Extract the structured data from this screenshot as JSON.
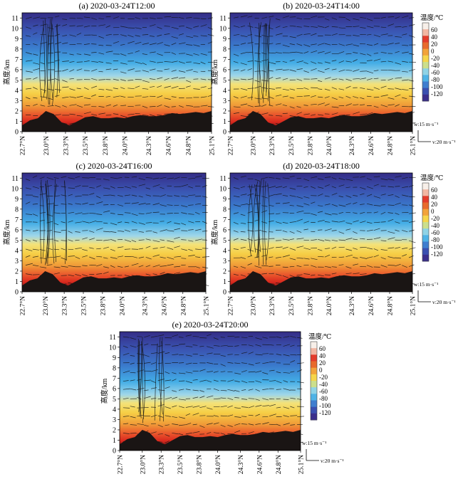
{
  "figure": {
    "ylabel": "高度/km",
    "yticks": [
      "0",
      "1",
      "2",
      "3",
      "4",
      "5",
      "6",
      "7",
      "8",
      "9",
      "10",
      "11"
    ],
    "xticks": [
      "22.7°N",
      "23.0°N",
      "23.3°N",
      "23.5°N",
      "23.8°N",
      "24.0°N",
      "24.3°N",
      "24.6°N",
      "24.8°N",
      "25.1°N"
    ],
    "colorbar": {
      "title": "温度/℃",
      "ticks": [
        "60",
        "40",
        "20",
        "0",
        "-20",
        "-40",
        "-60",
        "-80",
        "-100",
        "-120"
      ],
      "colors": [
        "#f7efe9",
        "#f2b6a2",
        "#e33b2b",
        "#e86a2c",
        "#f2a33a",
        "#f6d54a",
        "#ccdf8c",
        "#8fd3e6",
        "#4fb3e6",
        "#3f7ecf",
        "#3a4fb0",
        "#3a2e8c"
      ]
    },
    "vector_key": {
      "w": "w:15 m·s⁻¹",
      "v": "v:20 m·s⁻¹"
    }
  },
  "chart_data": [
    {
      "type": "heatmap",
      "title": "(a) 2020-03-24T12:00",
      "xlabel": "",
      "ylabel": "高度/km",
      "xlim": [
        22.7,
        25.1
      ],
      "ylim": [
        0,
        11.5
      ],
      "x": [
        22.7,
        22.8,
        22.9,
        23.0,
        23.1,
        23.2,
        23.3,
        23.4,
        23.5,
        23.6,
        23.7,
        23.8,
        23.9,
        24.0,
        24.1,
        24.2,
        24.3,
        24.4,
        24.5,
        24.6,
        24.7,
        24.8,
        24.9,
        25.0,
        25.1
      ],
      "terrain_km": [
        0.6,
        1.1,
        1.3,
        2.0,
        1.7,
        0.9,
        0.6,
        1.0,
        1.4,
        1.5,
        1.3,
        1.3,
        1.4,
        1.3,
        1.5,
        1.6,
        1.5,
        1.5,
        1.6,
        1.8,
        1.7,
        1.8,
        1.9,
        1.8,
        2.0
      ],
      "temperature_levels_c": {
        "surface": 20,
        "2km": 10,
        "4km": 0,
        "5km": -10,
        "7km": -40,
        "9km": -80,
        "11km": -110
      }
    },
    {
      "type": "heatmap",
      "title": "(b) 2020-03-24T14:00",
      "xlabel": "",
      "ylabel": "高度/km",
      "xlim": [
        22.7,
        25.1
      ],
      "ylim": [
        0,
        11.5
      ],
      "x": [
        22.7,
        22.8,
        22.9,
        23.0,
        23.1,
        23.2,
        23.3,
        23.4,
        23.5,
        23.6,
        23.7,
        23.8,
        23.9,
        24.0,
        24.1,
        24.2,
        24.3,
        24.4,
        24.5,
        24.6,
        24.7,
        24.8,
        24.9,
        25.0,
        25.1
      ],
      "terrain_km": [
        0.6,
        1.1,
        1.3,
        2.0,
        1.7,
        0.9,
        0.6,
        1.0,
        1.4,
        1.5,
        1.3,
        1.3,
        1.4,
        1.3,
        1.5,
        1.6,
        1.5,
        1.5,
        1.6,
        1.8,
        1.7,
        1.8,
        1.9,
        1.8,
        2.0
      ],
      "temperature_levels_c": {
        "surface": 20,
        "2km": 10,
        "4km": 0,
        "5km": -10,
        "7km": -40,
        "9km": -80,
        "11km": -110
      }
    },
    {
      "type": "heatmap",
      "title": "(c) 2020-03-24T16:00",
      "xlabel": "",
      "ylabel": "高度/km",
      "xlim": [
        22.7,
        25.1
      ],
      "ylim": [
        0,
        11.5
      ],
      "x": [
        22.7,
        22.8,
        22.9,
        23.0,
        23.1,
        23.2,
        23.3,
        23.4,
        23.5,
        23.6,
        23.7,
        23.8,
        23.9,
        24.0,
        24.1,
        24.2,
        24.3,
        24.4,
        24.5,
        24.6,
        24.7,
        24.8,
        24.9,
        25.0,
        25.1
      ],
      "terrain_km": [
        0.6,
        1.1,
        1.3,
        2.0,
        1.7,
        0.9,
        0.6,
        1.0,
        1.4,
        1.5,
        1.3,
        1.3,
        1.4,
        1.3,
        1.5,
        1.6,
        1.5,
        1.5,
        1.6,
        1.8,
        1.7,
        1.8,
        1.9,
        1.8,
        2.0
      ],
      "temperature_levels_c": {
        "surface": 20,
        "2km": 10,
        "4km": 0,
        "5km": -10,
        "7km": -40,
        "9km": -80,
        "11km": -110
      }
    },
    {
      "type": "heatmap",
      "title": "(d) 2020-03-24T18:00",
      "xlabel": "",
      "ylabel": "高度/km",
      "xlim": [
        22.7,
        25.1
      ],
      "ylim": [
        0,
        11.5
      ],
      "x": [
        22.7,
        22.8,
        22.9,
        23.0,
        23.1,
        23.2,
        23.3,
        23.4,
        23.5,
        23.6,
        23.7,
        23.8,
        23.9,
        24.0,
        24.1,
        24.2,
        24.3,
        24.4,
        24.5,
        24.6,
        24.7,
        24.8,
        24.9,
        25.0,
        25.1
      ],
      "terrain_km": [
        0.6,
        1.1,
        1.3,
        2.0,
        1.7,
        0.9,
        0.6,
        1.0,
        1.4,
        1.5,
        1.3,
        1.3,
        1.4,
        1.3,
        1.5,
        1.6,
        1.5,
        1.5,
        1.6,
        1.8,
        1.7,
        1.8,
        1.9,
        1.8,
        2.0
      ],
      "temperature_levels_c": {
        "surface": 20,
        "2km": 10,
        "4km": 0,
        "5km": -10,
        "7km": -40,
        "9km": -80,
        "11km": -110
      }
    },
    {
      "type": "heatmap",
      "title": "(e) 2020-03-24T20:00",
      "xlabel": "",
      "ylabel": "高度/km",
      "xlim": [
        22.7,
        25.1
      ],
      "ylim": [
        0,
        11.5
      ],
      "x": [
        22.7,
        22.8,
        22.9,
        23.0,
        23.1,
        23.2,
        23.3,
        23.4,
        23.5,
        23.6,
        23.7,
        23.8,
        23.9,
        24.0,
        24.1,
        24.2,
        24.3,
        24.4,
        24.5,
        24.6,
        24.7,
        24.8,
        24.9,
        25.0,
        25.1
      ],
      "terrain_km": [
        0.6,
        1.1,
        1.3,
        2.0,
        1.7,
        0.9,
        0.6,
        1.0,
        1.4,
        1.5,
        1.3,
        1.3,
        1.4,
        1.3,
        1.5,
        1.6,
        1.5,
        1.5,
        1.6,
        1.8,
        1.7,
        1.8,
        1.9,
        1.8,
        2.0
      ],
      "temperature_levels_c": {
        "surface": 20,
        "2km": 10,
        "4km": 0,
        "5km": -10,
        "7km": -40,
        "9km": -80,
        "11km": -110
      }
    }
  ]
}
